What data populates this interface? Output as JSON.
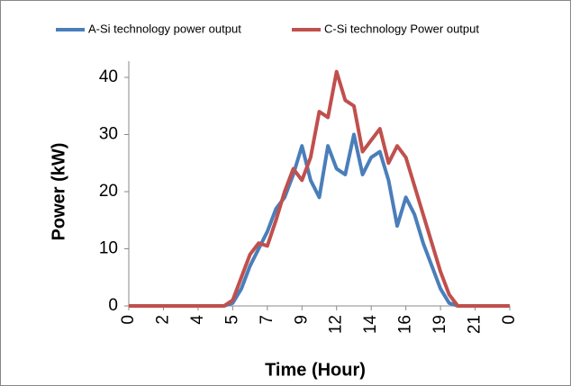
{
  "chart_data": {
    "type": "line",
    "xlabel": "Time (Hour)",
    "ylabel": "Power (kW)",
    "categories": [
      "0",
      null,
      null,
      null,
      "2",
      null,
      null,
      null,
      "4",
      null,
      null,
      null,
      "5",
      null,
      null,
      null,
      "7",
      null,
      null,
      null,
      "9",
      null,
      null,
      null,
      "12",
      null,
      null,
      null,
      "14",
      null,
      null,
      null,
      "16",
      null,
      null,
      null,
      "19",
      null,
      null,
      null,
      "21",
      null,
      null,
      null,
      "0"
    ],
    "series": [
      {
        "name": "A-Si technology power output",
        "color": "#4a7ebb",
        "values": [
          0,
          0,
          0,
          0,
          0,
          0,
          0,
          0,
          0,
          0,
          0,
          0,
          0.5,
          3,
          7,
          10,
          13,
          17,
          19,
          23,
          28,
          22,
          19,
          28,
          24,
          23,
          30,
          23,
          26,
          27,
          22,
          14,
          19,
          16,
          11,
          7,
          3,
          0.5,
          0,
          0,
          0,
          0,
          0,
          0,
          0
        ]
      },
      {
        "name": "C-Si technology Power output",
        "color": "#c0504d",
        "values": [
          0,
          0,
          0,
          0,
          0,
          0,
          0,
          0,
          0,
          0,
          0,
          0,
          1,
          5,
          9,
          11,
          10.5,
          15,
          20,
          24,
          22,
          26,
          34,
          33,
          41,
          36,
          35,
          27,
          29,
          31,
          25,
          28,
          26,
          21,
          16,
          11,
          6,
          2,
          0,
          0,
          0,
          0,
          0,
          0,
          0
        ]
      }
    ],
    "ylim": [
      0,
      40
    ],
    "yticks": [
      0,
      10,
      20,
      30,
      40
    ],
    "legend": "top"
  }
}
